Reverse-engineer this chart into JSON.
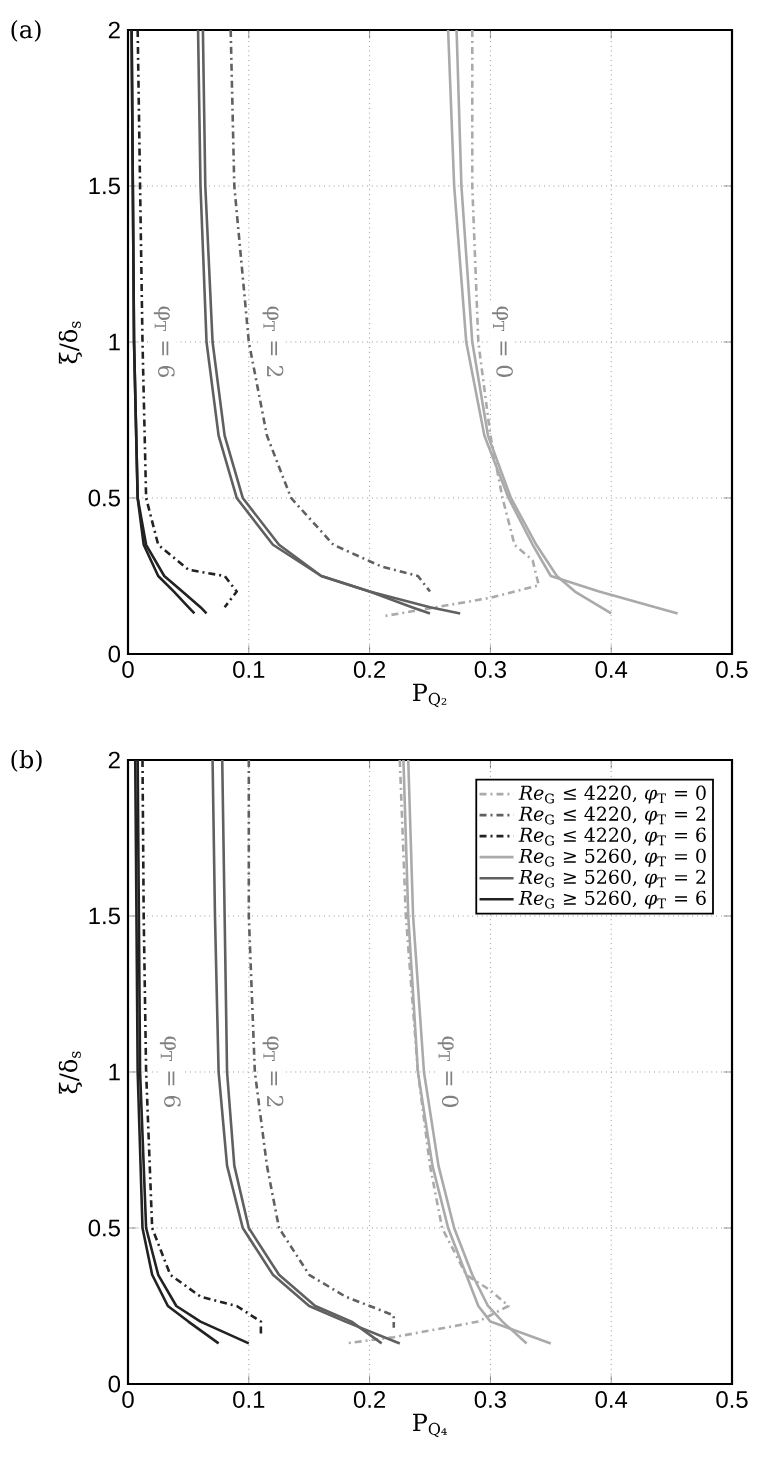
{
  "chart_data": [
    {
      "type": "line",
      "xlabel": "P$_{Q₂}$",
      "ylabel": "ξ/δ$_{s}$",
      "xlim": [
        0,
        0.5
      ],
      "ylim": [
        0,
        2
      ],
      "xticks": [
        0,
        0.1,
        0.2,
        0.3,
        0.4,
        0.5
      ],
      "yticks": [
        0,
        0.5,
        1,
        1.5,
        2
      ],
      "grid": true,
      "marker": "none",
      "annotations": [
        "(a)",
        {
          "text": "φ$_{T}$ = 6",
          "x": 0.03,
          "y": 1.0
        },
        {
          "text": "φ$_{T}$ = 2",
          "x": 0.12,
          "y": 1.0
        },
        {
          "text": "φ$_{T}$ = 0",
          "x": 0.31,
          "y": 1.0
        }
      ],
      "series": [
        {
          "color": "#aaaaaa",
          "line_style": "dashed",
          "x": [
            0.285,
            0.285,
            0.29,
            0.3,
            0.31,
            0.32,
            0.335,
            0.34,
            0.3,
            0.21
          ],
          "values": [
            2,
            1.5,
            1.0,
            0.7,
            0.5,
            0.35,
            0.3,
            0.22,
            0.18,
            0.12
          ]
        },
        {
          "color": "#606060",
          "line_style": "dashed",
          "x": [
            0.085,
            0.088,
            0.1,
            0.115,
            0.135,
            0.17,
            0.21,
            0.24,
            0.25
          ],
          "values": [
            2,
            1.5,
            1.0,
            0.7,
            0.5,
            0.35,
            0.28,
            0.25,
            0.2
          ]
        },
        {
          "color": "#222222",
          "line_style": "dashed",
          "x": [
            0.008,
            0.01,
            0.012,
            0.015,
            0.025,
            0.05,
            0.08,
            0.09,
            0.08
          ],
          "values": [
            2,
            1.5,
            1.0,
            0.5,
            0.35,
            0.27,
            0.25,
            0.2,
            0.15
          ]
        },
        {
          "color": "#aaaaaa",
          "line_style": "solid",
          "x": [
            0.265,
            0.27,
            0.28,
            0.295,
            0.315,
            0.335,
            0.35,
            0.39,
            0.455
          ],
          "values": [
            2,
            1.5,
            1.0,
            0.7,
            0.5,
            0.35,
            0.25,
            0.2,
            0.13
          ]
        },
        {
          "color": "#606060",
          "line_style": "solid",
          "x": [
            0.058,
            0.06,
            0.065,
            0.075,
            0.09,
            0.12,
            0.16,
            0.2,
            0.25,
            0.275
          ],
          "values": [
            2,
            1.5,
            1.0,
            0.7,
            0.5,
            0.35,
            0.25,
            0.2,
            0.15,
            0.13
          ]
        },
        {
          "color": "#222222",
          "line_style": "solid",
          "x": [
            0.003,
            0.004,
            0.005,
            0.008,
            0.015,
            0.03,
            0.045,
            0.06,
            0.065
          ],
          "values": [
            2,
            1.5,
            1.0,
            0.5,
            0.35,
            0.25,
            0.2,
            0.15,
            0.13
          ]
        },
        {
          "color": "#aaaaaa",
          "line_style": "solid",
          "x": [
            0.272,
            0.276,
            0.285,
            0.298,
            0.317,
            0.338,
            0.355,
            0.37,
            0.4
          ],
          "values": [
            2,
            1.5,
            1.0,
            0.7,
            0.5,
            0.35,
            0.25,
            0.2,
            0.13
          ]
        },
        {
          "color": "#606060",
          "line_style": "solid",
          "x": [
            0.062,
            0.064,
            0.07,
            0.08,
            0.095,
            0.125,
            0.16,
            0.2,
            0.235,
            0.25
          ],
          "values": [
            2,
            1.5,
            1.0,
            0.7,
            0.5,
            0.35,
            0.25,
            0.2,
            0.15,
            0.13
          ]
        },
        {
          "color": "#222222",
          "line_style": "solid",
          "x": [
            0.003,
            0.004,
            0.005,
            0.008,
            0.013,
            0.025,
            0.038,
            0.05,
            0.055
          ],
          "values": [
            2,
            1.5,
            1.0,
            0.5,
            0.35,
            0.25,
            0.2,
            0.15,
            0.13
          ]
        }
      ]
    },
    {
      "type": "line",
      "xlabel": "P$_{Q₄}$",
      "ylabel": "ξ/δ$_{s}$",
      "xlim": [
        0,
        0.5
      ],
      "ylim": [
        0,
        2
      ],
      "xticks": [
        0,
        0.1,
        0.2,
        0.3,
        0.4,
        0.5
      ],
      "yticks": [
        0,
        0.5,
        1,
        1.5,
        2
      ],
      "grid": true,
      "marker": "none",
      "legend": "top right",
      "annotations": [
        "(b)",
        {
          "text": "φ$_{T}$ = 6",
          "x": 0.035,
          "y": 1.0
        },
        {
          "text": "φ$_{T}$ = 2",
          "x": 0.12,
          "y": 1.0
        },
        {
          "text": "φ$_{T}$ = 0",
          "x": 0.265,
          "y": 1.0
        }
      ],
      "series": [
        {
          "name": "*Re*$_{G}$ ≤ 4220, *φ*$_{T}$ = 0",
          "color": "#aaaaaa",
          "line_style": "dashed",
          "x": [
            0.225,
            0.23,
            0.24,
            0.25,
            0.26,
            0.28,
            0.3,
            0.315,
            0.29,
            0.22,
            0.18
          ],
          "values": [
            2,
            1.5,
            1.0,
            0.7,
            0.5,
            0.35,
            0.3,
            0.25,
            0.2,
            0.15,
            0.13
          ]
        },
        {
          "name": "*Re*$_{G}$ ≤ 4220, *φ*$_{T}$ = 2",
          "color": "#606060",
          "line_style": "dashed",
          "x": [
            0.1,
            0.1,
            0.105,
            0.115,
            0.125,
            0.15,
            0.18,
            0.22,
            0.22
          ],
          "values": [
            2,
            1.5,
            1.0,
            0.7,
            0.5,
            0.35,
            0.28,
            0.22,
            0.18
          ]
        },
        {
          "name": "*Re*$_{G}$ ≤ 4220, *φ*$_{T}$ = 6",
          "color": "#222222",
          "line_style": "dashed",
          "x": [
            0.012,
            0.013,
            0.015,
            0.02,
            0.035,
            0.06,
            0.09,
            0.11,
            0.11
          ],
          "values": [
            2,
            1.5,
            1.0,
            0.5,
            0.35,
            0.28,
            0.25,
            0.2,
            0.15
          ]
        },
        {
          "name": "*Re*$_{G}$ ≥ 5260, *φ*$_{T}$ = 0",
          "color": "#aaaaaa",
          "line_style": "solid",
          "x": [
            0.228,
            0.232,
            0.24,
            0.252,
            0.265,
            0.28,
            0.29,
            0.3,
            0.35
          ],
          "values": [
            2,
            1.5,
            1.0,
            0.7,
            0.5,
            0.35,
            0.25,
            0.2,
            0.13
          ]
        },
        {
          "name": "*Re*$_{G}$ ≥ 5260, *φ*$_{T}$ = 2",
          "color": "#606060",
          "line_style": "solid",
          "x": [
            0.07,
            0.072,
            0.075,
            0.082,
            0.095,
            0.12,
            0.15,
            0.18,
            0.225
          ],
          "values": [
            2,
            1.5,
            1.0,
            0.7,
            0.5,
            0.35,
            0.25,
            0.2,
            0.13
          ]
        },
        {
          "name": "*Re*$_{G}$ ≥ 5260, *φ*$_{T}$ = 6",
          "color": "#222222",
          "line_style": "solid",
          "x": [
            0.008,
            0.009,
            0.01,
            0.015,
            0.025,
            0.04,
            0.06,
            0.1
          ],
          "values": [
            2,
            1.5,
            1.0,
            0.5,
            0.35,
            0.25,
            0.2,
            0.13
          ]
        },
        {
          "color": "#aaaaaa",
          "line_style": "solid",
          "x": [
            0.232,
            0.236,
            0.245,
            0.257,
            0.27,
            0.285,
            0.298,
            0.31,
            0.33
          ],
          "values": [
            2,
            1.5,
            1.0,
            0.7,
            0.5,
            0.35,
            0.25,
            0.2,
            0.13
          ]
        },
        {
          "color": "#606060",
          "line_style": "solid",
          "x": [
            0.078,
            0.08,
            0.082,
            0.088,
            0.1,
            0.125,
            0.155,
            0.185,
            0.21
          ],
          "values": [
            2,
            1.5,
            1.0,
            0.7,
            0.5,
            0.35,
            0.25,
            0.2,
            0.13
          ]
        },
        {
          "color": "#222222",
          "line_style": "solid",
          "x": [
            0.006,
            0.007,
            0.008,
            0.012,
            0.02,
            0.033,
            0.05,
            0.075
          ],
          "values": [
            2,
            1.5,
            1.0,
            0.5,
            0.35,
            0.25,
            0.2,
            0.13
          ]
        }
      ]
    }
  ]
}
